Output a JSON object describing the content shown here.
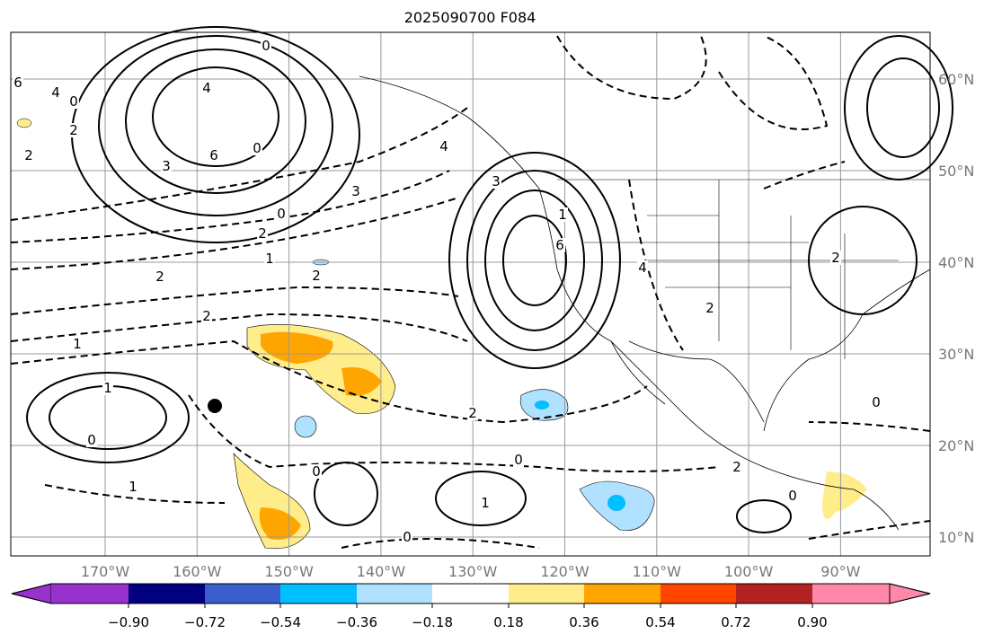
{
  "title": "2025090700 F084",
  "lon_labels": [
    "170°W",
    "160°W",
    "150°W",
    "140°W",
    "130°W",
    "120°W",
    "110°W",
    "100°W",
    "90°W"
  ],
  "lat_labels": [
    "60°N",
    "50°N",
    "40°N",
    "30°N",
    "20°N",
    "10°N"
  ],
  "colorbar": {
    "colors": [
      "#9932cc",
      "#000080",
      "#3a5fcd",
      "#00bfff",
      "#b0e2ff",
      "#ffffff",
      "#ffec8b",
      "#ffa500",
      "#ff4500",
      "#b22222",
      "#ff88aa"
    ],
    "tick_labels": [
      "−0.90",
      "−0.72",
      "−0.54",
      "−0.36",
      "−0.18",
      "0.18",
      "0.36",
      "0.54",
      "0.72",
      "0.90"
    ]
  },
  "contour_labels": [
    "6",
    "4",
    "2",
    "3",
    "6",
    "4",
    "0",
    "2",
    "1",
    "0",
    "3",
    "2",
    "4",
    "1",
    "2",
    "2",
    "2",
    "1",
    "1",
    "0",
    "0",
    "1",
    "0",
    "2",
    "0",
    "1",
    "0",
    "0",
    "0",
    "3",
    "6",
    "4",
    "2",
    "0",
    "2",
    "2"
  ],
  "marker": "point-marker"
}
